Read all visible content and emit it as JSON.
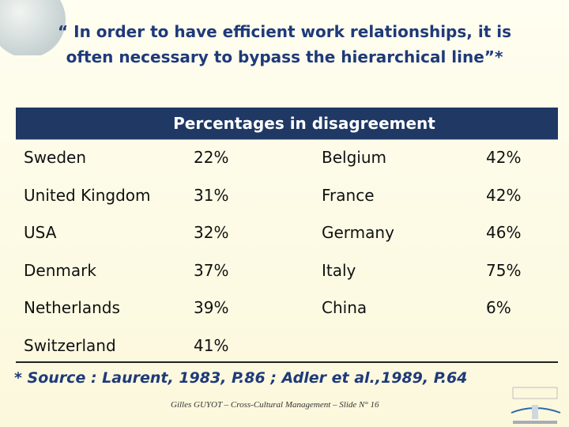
{
  "header": {
    "title": [
      "“ In order to have efficient work relationships, it is",
      "often necessary to bypass the hierarchical line”*"
    ]
  },
  "table": {
    "caption": "Percentages in disagreement",
    "rows": [
      [
        "Sweden",
        "22%",
        "Belgium",
        "42%"
      ],
      [
        "United Kingdom",
        "31%",
        "France",
        "42%"
      ],
      [
        "USA",
        "32%",
        "Germany",
        "46%"
      ],
      [
        "Denmark",
        "37%",
        "Italy",
        "75%"
      ],
      [
        "Netherlands",
        "39%",
        "China",
        "6%"
      ],
      [
        "Switzerland",
        "41%"
      ]
    ]
  },
  "source": "* Source : Laurent, 1983, P.86 ; Adler et al.,1989, P.64",
  "footer": "Gilles GUYOT – Cross-Cultural Management – Slide N° 16"
}
